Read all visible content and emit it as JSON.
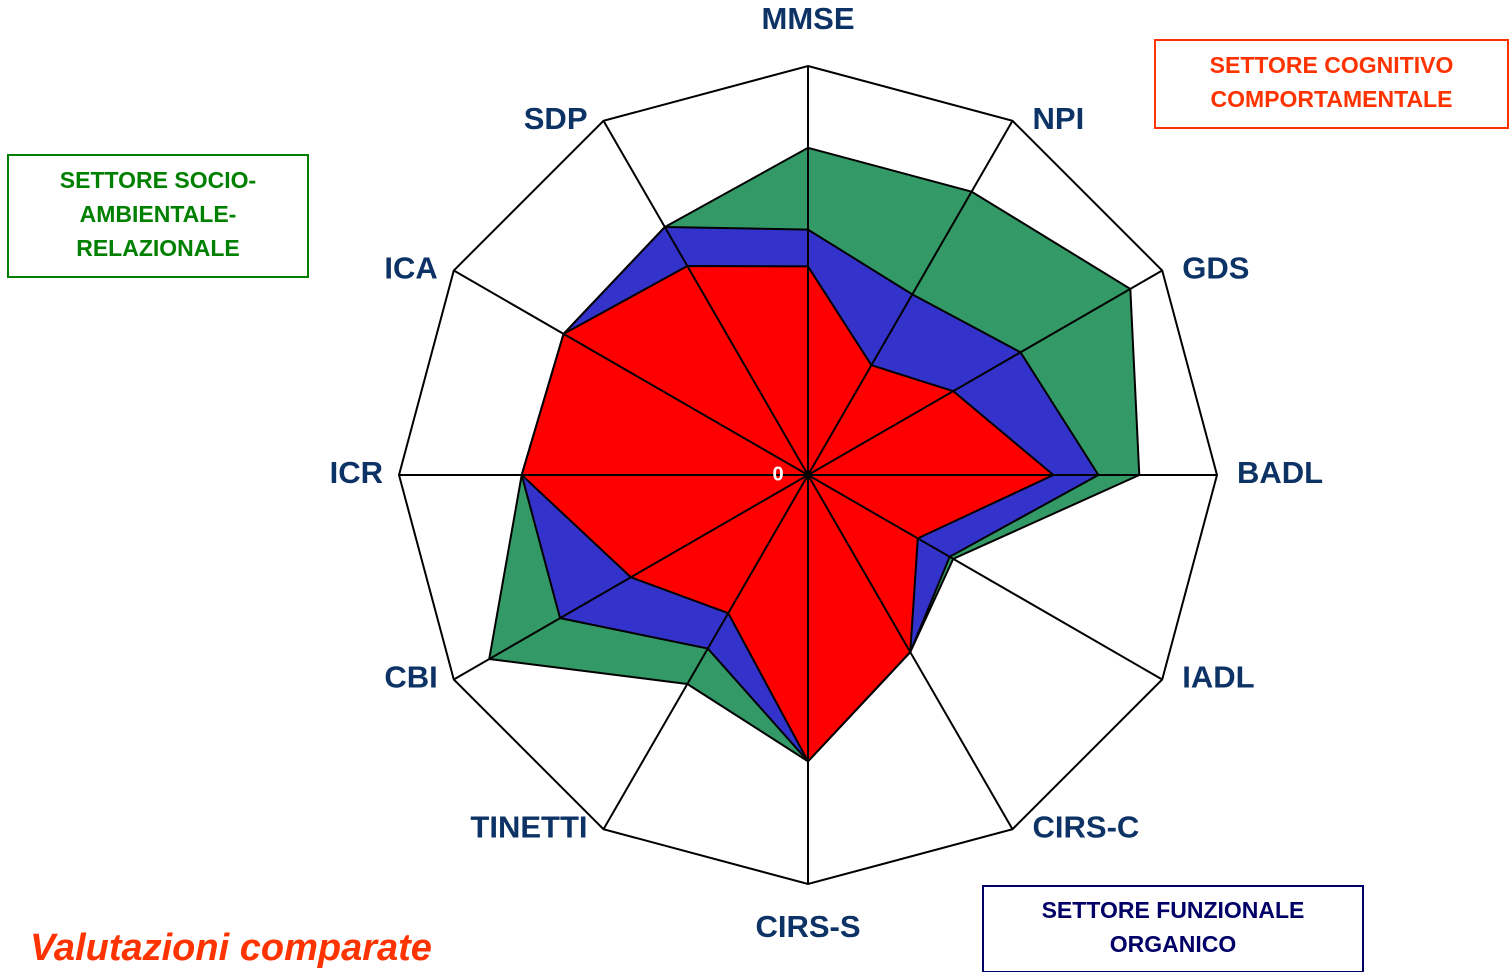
{
  "chart_data": {
    "type": "radar",
    "title": "Valutazioni comparate",
    "categories": [
      "MMSE",
      "NPI",
      "GDS",
      "BADL",
      "IADL",
      "CIRS-C",
      "CIRS-S",
      "TINETTI",
      "CBI",
      "ICR",
      "ICA",
      "SDP"
    ],
    "series": [
      {
        "color": "#339966",
        "values": [
          80,
          80,
          91,
          81,
          41,
          50,
          70,
          59,
          90,
          70,
          69,
          70
        ]
      },
      {
        "color": "#3333cc",
        "values": [
          60,
          51,
          60,
          71,
          40,
          50,
          70,
          49,
          70,
          70,
          69,
          70
        ]
      },
      {
        "color": "#ff0000",
        "values": [
          51,
          31,
          41,
          60,
          31,
          50,
          70,
          39,
          50,
          70,
          69,
          59
        ]
      }
    ],
    "ylim": [
      0,
      100
    ],
    "yticks": [
      0
    ],
    "annotations": [
      {
        "lines": [
          "SETTORE COGNITIVO",
          "COMPORTAMENTALE"
        ],
        "color": "#ff3300"
      },
      {
        "lines": [
          "SETTORE SOCIO-",
          "AMBIENTALE-",
          "RELAZIONALE"
        ],
        "color": "#008000"
      },
      {
        "lines": [
          "SETTORE FUNZIONALE",
          "ORGANICO"
        ],
        "color": "#000066"
      }
    ]
  }
}
